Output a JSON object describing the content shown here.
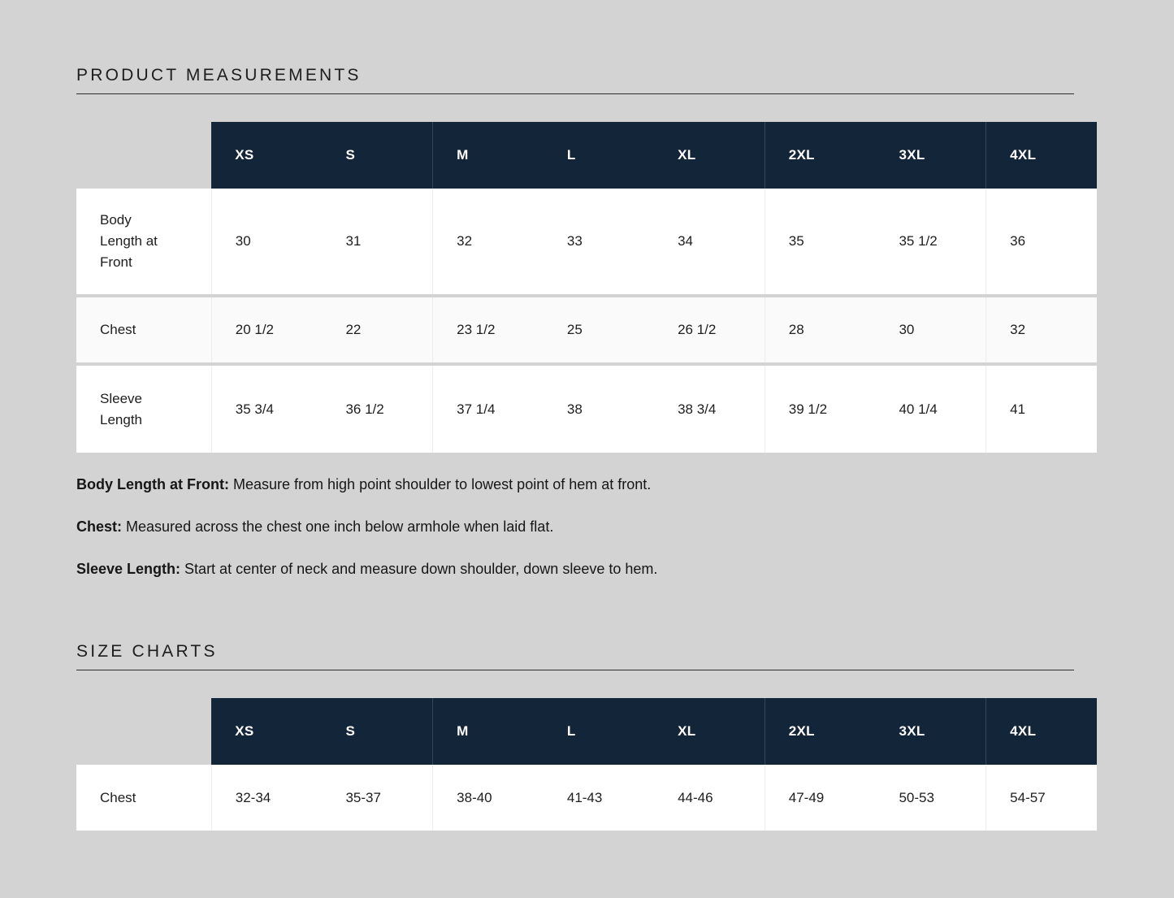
{
  "colors": {
    "page_background": "#d4d3d3",
    "table_header_background": "#132539",
    "table_header_text": "#ffffff",
    "row_background": "#ffffff",
    "row_alt_background": "#fafafa",
    "text": "#1e1e1e"
  },
  "measurements": {
    "heading": "PRODUCT MEASUREMENTS",
    "table": {
      "columns": [
        "XS",
        "S",
        "M",
        "L",
        "XL",
        "2XL",
        "3XL",
        "4XL"
      ],
      "rows": [
        {
          "label": "Body Length at Front",
          "values": [
            "30",
            "31",
            "32",
            "33",
            "34",
            "35",
            "35 1/2",
            "36"
          ]
        },
        {
          "label": "Chest",
          "values": [
            "20 1/2",
            "22",
            "23 1/2",
            "25",
            "26 1/2",
            "28",
            "30",
            "32"
          ]
        },
        {
          "label": "Sleeve Length",
          "values": [
            "35 3/4",
            "36 1/2",
            "37 1/4",
            "38",
            "38 3/4",
            "39 1/2",
            "40 1/4",
            "41"
          ]
        }
      ]
    },
    "notes": [
      {
        "label": "Body Length at Front:",
        "text": "Measure from high point shoulder to lowest point of hem at front."
      },
      {
        "label": "Chest:",
        "text": "Measured across the chest one inch below armhole when laid flat."
      },
      {
        "label": "Sleeve Length:",
        "text": "Start at center of neck and measure down shoulder, down sleeve to hem."
      }
    ]
  },
  "size_charts": {
    "heading": "SIZE CHARTS",
    "table": {
      "columns": [
        "XS",
        "S",
        "M",
        "L",
        "XL",
        "2XL",
        "3XL",
        "4XL"
      ],
      "rows": [
        {
          "label": "Chest",
          "values": [
            "32-34",
            "35-37",
            "38-40",
            "41-43",
            "44-46",
            "47-49",
            "50-53",
            "54-57"
          ]
        }
      ]
    }
  }
}
